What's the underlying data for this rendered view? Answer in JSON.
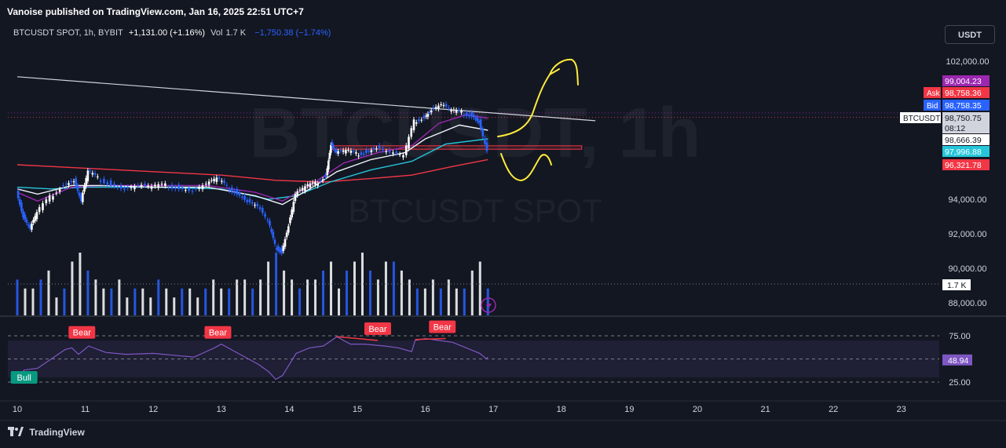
{
  "header": {
    "publisher": "Vanoise published on TradingView.com, Jan 16, 2025 22:51 UTC+7",
    "symbol": "BTCUSDT SPOT, 1h, BYBIT",
    "change": "+1,131.00 (+1.16%)",
    "vol_label": "Vol",
    "vol_value": "1.7 K",
    "vol_change": "−1,750.38 (−1.74%)",
    "currency": "USDT"
  },
  "watermark": {
    "big": "BTCUSDT, 1h",
    "small": "BTCUSDT SPOT"
  },
  "footer": {
    "brand": "TradingView"
  },
  "colors": {
    "background": "#131722",
    "up": "#ffffff",
    "down": "#2962ff",
    "ema_white": "#f0f3fa",
    "ema_purple": "#9c27b0",
    "ema_teal": "#26c6da",
    "ema_red": "#f23645",
    "rsi": "#7e57c2",
    "zone": "#f23645",
    "trendline": "#d1d4dc",
    "annotation": "#ffeb3b"
  },
  "chart_data": [
    {
      "type": "candlestick",
      "title": "BTCUSDT SPOT, 1h, BYBIT",
      "y_axis_labels": [
        "102,000.00",
        "94,000.00",
        "92,000.00",
        "90,000.00",
        "88,000.00"
      ],
      "y_axis_values": [
        102000,
        94000,
        92000,
        90000,
        88000
      ],
      "ylim": [
        87500,
        103500
      ],
      "x_tick_labels": [
        "10",
        "11",
        "12",
        "13",
        "14",
        "15",
        "16",
        "17",
        "18",
        "19",
        "20",
        "21",
        "22",
        "23"
      ],
      "price_labels": [
        {
          "label": "",
          "text": "99,004.23",
          "value": 99004.23,
          "color": "#9c27b0"
        },
        {
          "label": "Ask",
          "text": "98,758.36",
          "value": 98758.36,
          "color": "#f23645"
        },
        {
          "label": "Bid",
          "text": "98,758.35",
          "value": 98758.35,
          "color": "#2962ff"
        },
        {
          "label": "BTCUSDT",
          "text": "98,750.75",
          "value": 98750.75,
          "color": "#d1d4dc"
        },
        {
          "label": "",
          "text": "08:12",
          "value": null,
          "color": "#d1d4dc"
        },
        {
          "label": "",
          "text": "98,666.39",
          "value": 98666.39,
          "color": "#ffffff"
        },
        {
          "label": "",
          "text": "97,996.88",
          "value": 97996.88,
          "color": "#26c6da"
        },
        {
          "label": "",
          "text": "96,321.78",
          "value": 96321.78,
          "color": "#f23645"
        }
      ],
      "close_path": [
        [
          10.0,
          94500
        ],
        [
          10.1,
          93000
        ],
        [
          10.2,
          92300
        ],
        [
          10.3,
          93200
        ],
        [
          10.5,
          94100
        ],
        [
          10.7,
          94900
        ],
        [
          10.85,
          95100
        ],
        [
          10.95,
          93900
        ],
        [
          11.05,
          95600
        ],
        [
          11.2,
          95200
        ],
        [
          11.4,
          94900
        ],
        [
          11.6,
          94600
        ],
        [
          11.8,
          94800
        ],
        [
          12.0,
          94700
        ],
        [
          12.2,
          94800
        ],
        [
          12.4,
          94700
        ],
        [
          12.6,
          94500
        ],
        [
          12.8,
          94900
        ],
        [
          12.95,
          95200
        ],
        [
          13.1,
          94700
        ],
        [
          13.25,
          94400
        ],
        [
          13.4,
          93900
        ],
        [
          13.55,
          93600
        ],
        [
          13.7,
          92700
        ],
        [
          13.8,
          91300
        ],
        [
          13.9,
          91000
        ],
        [
          14.0,
          92500
        ],
        [
          14.1,
          94300
        ],
        [
          14.25,
          94700
        ],
        [
          14.4,
          94900
        ],
        [
          14.55,
          95400
        ],
        [
          14.62,
          97200
        ],
        [
          14.7,
          96700
        ],
        [
          14.85,
          96800
        ],
        [
          15.0,
          96600
        ],
        [
          15.15,
          96800
        ],
        [
          15.3,
          97000
        ],
        [
          15.5,
          96700
        ],
        [
          15.7,
          96500
        ],
        [
          15.85,
          98500
        ],
        [
          16.0,
          98800
        ],
        [
          16.1,
          99200
        ],
        [
          16.25,
          99500
        ],
        [
          16.4,
          99100
        ],
        [
          16.55,
          99000
        ],
        [
          16.7,
          98900
        ],
        [
          16.8,
          98500
        ],
        [
          16.92,
          96800
        ]
      ],
      "ema_white": [
        [
          10.0,
          94600
        ],
        [
          10.3,
          94300
        ],
        [
          10.8,
          94800
        ],
        [
          11.2,
          94800
        ],
        [
          12.0,
          94700
        ],
        [
          12.8,
          94700
        ],
        [
          13.5,
          94200
        ],
        [
          13.9,
          93700
        ],
        [
          14.3,
          94600
        ],
        [
          14.7,
          95600
        ],
        [
          15.2,
          96300
        ],
        [
          15.7,
          96700
        ],
        [
          16.0,
          97500
        ],
        [
          16.5,
          98300
        ],
        [
          16.92,
          98000
        ]
      ],
      "ema_purple": [
        [
          10.0,
          94400
        ],
        [
          10.3,
          93900
        ],
        [
          10.8,
          94700
        ],
        [
          11.3,
          94800
        ],
        [
          12.0,
          94800
        ],
        [
          12.8,
          94800
        ],
        [
          13.5,
          94400
        ],
        [
          13.9,
          93900
        ],
        [
          14.3,
          94800
        ],
        [
          14.8,
          96100
        ],
        [
          15.3,
          96700
        ],
        [
          15.8,
          97100
        ],
        [
          16.2,
          98400
        ],
        [
          16.6,
          98900
        ],
        [
          16.92,
          98700
        ]
      ],
      "ema_teal": [
        [
          10.0,
          94700
        ],
        [
          10.5,
          94600
        ],
        [
          11.0,
          94700
        ],
        [
          12.0,
          94700
        ],
        [
          13.0,
          94600
        ],
        [
          13.7,
          94000
        ],
        [
          14.1,
          94200
        ],
        [
          14.6,
          95000
        ],
        [
          15.2,
          95700
        ],
        [
          15.8,
          96200
        ],
        [
          16.3,
          97200
        ],
        [
          16.92,
          97500
        ]
      ],
      "ema_red": [
        [
          10.0,
          96000
        ],
        [
          10.5,
          95900
        ],
        [
          11.0,
          95800
        ],
        [
          12.0,
          95600
        ],
        [
          13.0,
          95400
        ],
        [
          13.8,
          95100
        ],
        [
          14.5,
          95000
        ],
        [
          15.2,
          95200
        ],
        [
          15.8,
          95400
        ],
        [
          16.4,
          95900
        ],
        [
          16.92,
          96300
        ]
      ],
      "trendline": [
        [
          10.0,
          101100
        ],
        [
          18.5,
          98550
        ]
      ],
      "zone": {
        "x_start": 14.62,
        "x_end": 18.3,
        "y_top": 97100,
        "y_bottom": 96900
      },
      "dotted_levels": [
        {
          "value": 99004.23,
          "color": "#9c27b0"
        },
        {
          "value": 98750.75,
          "color": "#f23645"
        }
      ],
      "volume": {
        "last_label": "1.7 K",
        "max": 7,
        "values": [
          4,
          3,
          3,
          4,
          5,
          2,
          3,
          6,
          7,
          5,
          4,
          3,
          3,
          4,
          2,
          3,
          3,
          2,
          4,
          3,
          2,
          3,
          3,
          2,
          3,
          4,
          3,
          3,
          4,
          4,
          3,
          4,
          6,
          7,
          5,
          4,
          3,
          4,
          4,
          5,
          6,
          3,
          5,
          6,
          7,
          5,
          4,
          6,
          6,
          5,
          4,
          3,
          3,
          4,
          3,
          4,
          3,
          3,
          5,
          6,
          3
        ]
      }
    },
    {
      "type": "line",
      "title": "RSI",
      "ylim": [
        10,
        90
      ],
      "y_axis_labels": [
        "75.00",
        "25.00"
      ],
      "y_axis_values": [
        75,
        25
      ],
      "current_value": "48.94",
      "band": [
        30,
        70
      ],
      "midline": 50,
      "values": [
        [
          10.0,
          30
        ],
        [
          10.1,
          38
        ],
        [
          10.3,
          40
        ],
        [
          10.5,
          50
        ],
        [
          10.7,
          60
        ],
        [
          10.8,
          62
        ],
        [
          10.9,
          55
        ],
        [
          10.95,
          58
        ],
        [
          11.05,
          64
        ],
        [
          11.3,
          57
        ],
        [
          11.6,
          55
        ],
        [
          12.0,
          56
        ],
        [
          12.3,
          54
        ],
        [
          12.6,
          52
        ],
        [
          12.9,
          62
        ],
        [
          13.0,
          66
        ],
        [
          13.2,
          58
        ],
        [
          13.4,
          50
        ],
        [
          13.55,
          44
        ],
        [
          13.7,
          36
        ],
        [
          13.8,
          28
        ],
        [
          13.9,
          32
        ],
        [
          14.1,
          56
        ],
        [
          14.3,
          62
        ],
        [
          14.5,
          64
        ],
        [
          14.7,
          74
        ],
        [
          14.9,
          66
        ],
        [
          15.1,
          66
        ],
        [
          15.4,
          64
        ],
        [
          15.6,
          62
        ],
        [
          15.8,
          58
        ],
        [
          15.85,
          70
        ],
        [
          16.0,
          72
        ],
        [
          16.2,
          70
        ],
        [
          16.4,
          68
        ],
        [
          16.6,
          62
        ],
        [
          16.8,
          56
        ],
        [
          16.9,
          50
        ],
        [
          16.92,
          52
        ]
      ],
      "signals": [
        {
          "label": "Bull",
          "x": 10.1,
          "y": 30,
          "color": "#089981"
        },
        {
          "label": "Bear",
          "x": 10.95,
          "y": 66,
          "color": "#f23645"
        },
        {
          "label": "Bear",
          "x": 12.95,
          "y": 66,
          "color": "#f23645"
        },
        {
          "label": "Bear",
          "x": 15.3,
          "y": 70,
          "color": "#f23645"
        },
        {
          "label": "Bear",
          "x": 16.25,
          "y": 72,
          "color": "#f23645"
        }
      ]
    }
  ]
}
